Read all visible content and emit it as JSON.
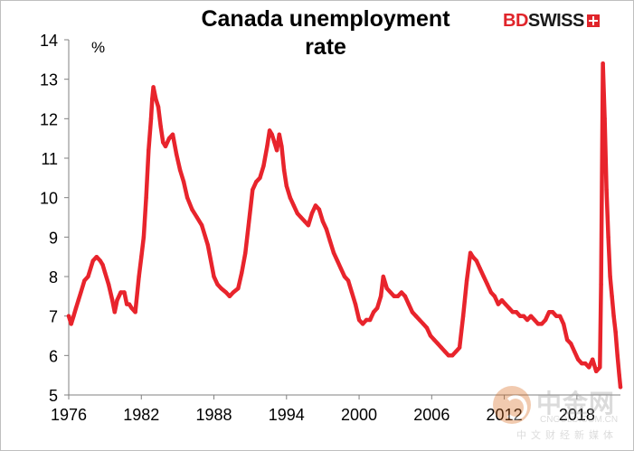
{
  "chart_data": {
    "type": "line",
    "title": "Canada unemployment\nrate",
    "unit_label": "%",
    "xlabel": "",
    "ylabel": "",
    "xlim": [
      1976,
      2021.6
    ],
    "ylim": [
      5,
      14
    ],
    "yticks": [
      5,
      6,
      7,
      8,
      9,
      10,
      11,
      12,
      13,
      14
    ],
    "xticks": [
      1976,
      1982,
      1988,
      1994,
      2000,
      2006,
      2012,
      2018
    ],
    "grid": false,
    "legend": "none",
    "line_color": "#e8242c",
    "series": [
      {
        "x": [
          1976.0,
          1976.2,
          1976.4,
          1976.6,
          1976.8,
          1977.0,
          1977.3,
          1977.6,
          1978.0,
          1978.3,
          1978.6,
          1978.8,
          1979.0,
          1979.3,
          1979.6,
          1979.8,
          1980.0,
          1980.3,
          1980.6,
          1980.8,
          1981.0,
          1981.2,
          1981.5,
          1981.8,
          1982.0,
          1982.2,
          1982.4,
          1982.6,
          1982.8,
          1982.9,
          1983.0,
          1983.2,
          1983.4,
          1983.6,
          1983.8,
          1984.0,
          1984.3,
          1984.6,
          1984.9,
          1985.2,
          1985.5,
          1985.8,
          1986.2,
          1986.6,
          1987.0,
          1987.5,
          1988.0,
          1988.3,
          1988.6,
          1989.0,
          1989.3,
          1989.6,
          1990.0,
          1990.3,
          1990.6,
          1990.9,
          1991.2,
          1991.5,
          1991.8,
          1992.1,
          1992.4,
          1992.6,
          1992.8,
          1993.0,
          1993.2,
          1993.4,
          1993.6,
          1993.8,
          1994.0,
          1994.3,
          1994.6,
          1994.9,
          1995.2,
          1995.5,
          1995.8,
          1996.1,
          1996.4,
          1996.7,
          1997.0,
          1997.3,
          1997.6,
          1997.9,
          1998.2,
          1998.5,
          1998.8,
          1999.1,
          1999.4,
          1999.7,
          2000.0,
          2000.3,
          2000.6,
          2000.9,
          2001.2,
          2001.5,
          2001.8,
          2002.0,
          2002.3,
          2002.6,
          2002.9,
          2003.2,
          2003.5,
          2003.8,
          2004.1,
          2004.4,
          2004.7,
          2005.0,
          2005.3,
          2005.6,
          2005.9,
          2006.2,
          2006.5,
          2006.8,
          2007.1,
          2007.4,
          2007.7,
          2008.0,
          2008.3,
          2008.6,
          2008.9,
          2009.2,
          2009.4,
          2009.7,
          2010.0,
          2010.3,
          2010.6,
          2010.9,
          2011.2,
          2011.5,
          2011.8,
          2012.1,
          2012.4,
          2012.7,
          2013.0,
          2013.3,
          2013.6,
          2013.9,
          2014.2,
          2014.5,
          2014.8,
          2015.1,
          2015.4,
          2015.7,
          2016.0,
          2016.3,
          2016.6,
          2016.9,
          2017.2,
          2017.5,
          2017.8,
          2018.1,
          2018.4,
          2018.7,
          2019.0,
          2019.3,
          2019.6,
          2019.9,
          2020.0,
          2020.15,
          2020.3,
          2020.45,
          2020.6,
          2020.75,
          2020.9,
          2021.05,
          2021.2,
          2021.35,
          2021.5,
          2021.6
        ],
        "values": [
          7.0,
          6.8,
          7.0,
          7.2,
          7.4,
          7.6,
          7.9,
          8.0,
          8.4,
          8.5,
          8.4,
          8.3,
          8.1,
          7.8,
          7.4,
          7.1,
          7.4,
          7.6,
          7.6,
          7.3,
          7.3,
          7.2,
          7.1,
          8.0,
          8.5,
          9.0,
          10.0,
          11.2,
          12.0,
          12.5,
          12.8,
          12.5,
          12.3,
          11.8,
          11.4,
          11.3,
          11.5,
          11.6,
          11.1,
          10.7,
          10.4,
          10.0,
          9.7,
          9.5,
          9.3,
          8.8,
          8.0,
          7.8,
          7.7,
          7.6,
          7.5,
          7.6,
          7.7,
          8.1,
          8.6,
          9.4,
          10.2,
          10.4,
          10.5,
          10.8,
          11.3,
          11.7,
          11.6,
          11.4,
          11.2,
          11.6,
          11.3,
          10.7,
          10.3,
          10.0,
          9.8,
          9.6,
          9.5,
          9.4,
          9.3,
          9.6,
          9.8,
          9.7,
          9.4,
          9.2,
          8.9,
          8.6,
          8.4,
          8.2,
          8.0,
          7.9,
          7.6,
          7.3,
          6.9,
          6.8,
          6.9,
          6.9,
          7.1,
          7.2,
          7.5,
          8.0,
          7.7,
          7.6,
          7.5,
          7.5,
          7.6,
          7.5,
          7.3,
          7.1,
          7.0,
          6.9,
          6.8,
          6.7,
          6.5,
          6.4,
          6.3,
          6.2,
          6.1,
          6.0,
          6.0,
          6.1,
          6.2,
          7.0,
          7.9,
          8.6,
          8.5,
          8.4,
          8.2,
          8.0,
          7.8,
          7.6,
          7.5,
          7.3,
          7.4,
          7.3,
          7.2,
          7.1,
          7.1,
          7.0,
          7.0,
          6.9,
          7.0,
          6.9,
          6.8,
          6.8,
          6.9,
          7.1,
          7.1,
          7.0,
          7.0,
          6.8,
          6.4,
          6.3,
          6.1,
          5.9,
          5.8,
          5.8,
          5.7,
          5.9,
          5.6,
          5.7,
          7.8,
          13.4,
          12.0,
          10.2,
          9.0,
          8.0,
          7.5,
          7.0,
          6.6,
          6.0,
          5.5,
          5.2
        ]
      }
    ]
  }
}
